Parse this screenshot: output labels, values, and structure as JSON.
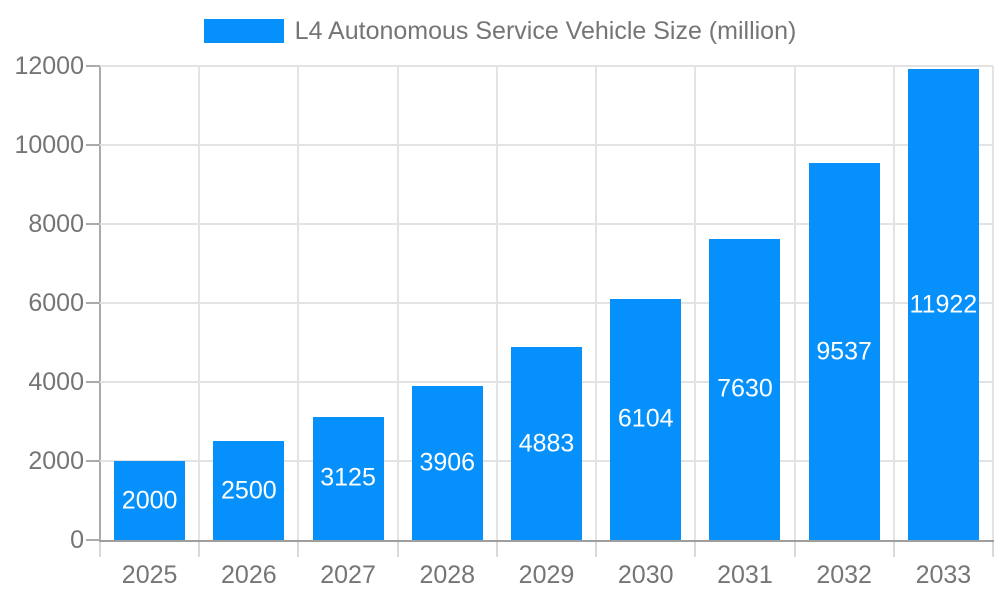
{
  "chart_data": {
    "type": "bar",
    "title": "L4 Autonomous Service Vehicle Size (million)",
    "categories": [
      "2025",
      "2026",
      "2027",
      "2028",
      "2029",
      "2030",
      "2031",
      "2032",
      "2033"
    ],
    "values": [
      2000,
      2500,
      3125,
      3906,
      4883,
      6104,
      7630,
      9537,
      11922
    ],
    "xlabel": "",
    "ylabel": "",
    "ylim": [
      0,
      12000
    ],
    "y_ticks": [
      0,
      2000,
      4000,
      6000,
      8000,
      10000,
      12000
    ],
    "grid": true,
    "legend_position": "top-center",
    "bar_color": "#0590fb",
    "bar_label_color": "#ffffff",
    "axis_text_color": "#757575"
  }
}
